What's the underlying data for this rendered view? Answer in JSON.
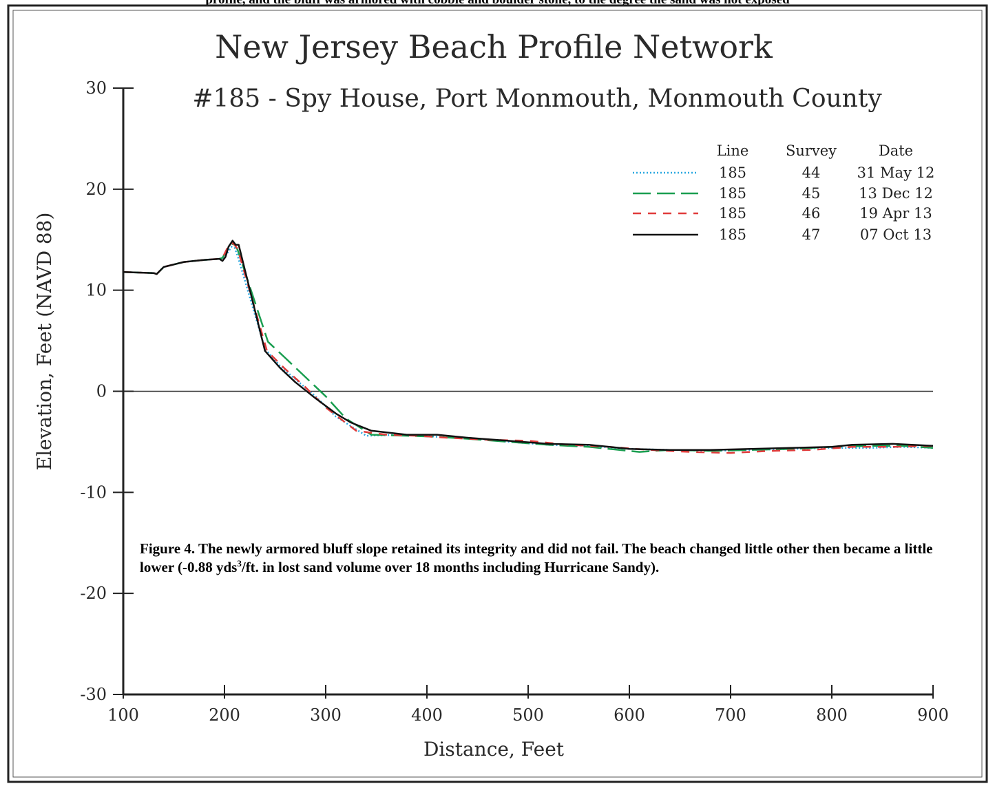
{
  "top_fragment": "profile, and the bluff was armored with cobble and boulder stone, to the degree the sand was not exposed",
  "chart_data": {
    "type": "line",
    "title": "New Jersey Beach Profile Network",
    "subtitle": "#185 - Spy House, Port Monmouth, Monmouth County",
    "xlabel": "Distance, Feet",
    "ylabel": "Elevation, Feet (NAVD 88)",
    "xlim": [
      100,
      900
    ],
    "ylim": [
      -30,
      30
    ],
    "xticks": [
      100,
      200,
      300,
      400,
      500,
      600,
      700,
      800,
      900
    ],
    "yticks": [
      30,
      20,
      10,
      0,
      -10,
      -20,
      -30
    ],
    "grid": false,
    "zero_line": true,
    "legend": {
      "position": "top-right",
      "headers": [
        "Line",
        "Survey",
        "Date"
      ],
      "entries": [
        {
          "line": "185",
          "survey": "44",
          "date": "31 May 12",
          "color": "#29a8e0",
          "style": "dotted"
        },
        {
          "line": "185",
          "survey": "45",
          "date": "13 Dec 12",
          "color": "#1a9e50",
          "style": "longdash"
        },
        {
          "line": "185",
          "survey": "46",
          "date": "19 Apr 13",
          "color": "#e03b3b",
          "style": "dashed"
        },
        {
          "line": "185",
          "survey": "47",
          "date": "07 Oct 13",
          "color": "#111111",
          "style": "solid"
        }
      ]
    },
    "series": [
      {
        "x": [
          100,
          130,
          133,
          140,
          160,
          180,
          195,
          198,
          203,
          207,
          210,
          213,
          240,
          255,
          270,
          290,
          310,
          340,
          380,
          410,
          440,
          480,
          520,
          560,
          600,
          640,
          680,
          720,
          760,
          800,
          840,
          870,
          900
        ],
        "y": [
          11.8,
          11.7,
          11.6,
          12.3,
          12.8,
          13.0,
          13.1,
          13.2,
          13.7,
          14.3,
          14.2,
          13.4,
          4.2,
          2.5,
          1.2,
          -0.5,
          -2.5,
          -4.4,
          -4.3,
          -4.5,
          -4.6,
          -5.0,
          -5.3,
          -5.4,
          -5.7,
          -5.8,
          -5.9,
          -5.8,
          -5.7,
          -5.6,
          -5.6,
          -5.5,
          -5.6
        ]
      },
      {
        "x": [
          100,
          130,
          133,
          140,
          160,
          180,
          195,
          198,
          203,
          207,
          210,
          213,
          243,
          260,
          280,
          300,
          320,
          345,
          380,
          410,
          440,
          480,
          520,
          560,
          610,
          640,
          680,
          720,
          760,
          800,
          840,
          870,
          900
        ],
        "y": [
          11.8,
          11.7,
          11.6,
          12.3,
          12.8,
          13.0,
          13.1,
          13.2,
          14.1,
          14.6,
          14.5,
          14.0,
          4.9,
          3.3,
          1.4,
          -0.5,
          -2.7,
          -4.3,
          -4.4,
          -4.5,
          -4.7,
          -5.0,
          -5.3,
          -5.5,
          -6.0,
          -5.8,
          -5.9,
          -5.8,
          -5.7,
          -5.5,
          -5.4,
          -5.4,
          -5.6
        ]
      },
      {
        "x": [
          100,
          130,
          133,
          140,
          160,
          180,
          195,
          198,
          203,
          207,
          210,
          213,
          242,
          260,
          280,
          300,
          330,
          360,
          390,
          420,
          460,
          500,
          540,
          580,
          620,
          660,
          700,
          740,
          780,
          820,
          860,
          900
        ],
        "y": [
          11.8,
          11.7,
          11.6,
          12.3,
          12.8,
          13.0,
          13.1,
          13.2,
          14.2,
          14.7,
          14.5,
          14.1,
          4.0,
          2.2,
          0.4,
          -1.6,
          -3.9,
          -4.3,
          -4.4,
          -4.6,
          -4.8,
          -4.9,
          -5.3,
          -5.5,
          -5.8,
          -6.0,
          -6.1,
          -5.9,
          -5.8,
          -5.5,
          -5.5,
          -5.4
        ]
      },
      {
        "x": [
          100,
          130,
          133,
          140,
          160,
          180,
          195,
          198,
          201,
          204,
          208,
          211,
          214,
          240,
          255,
          270,
          290,
          310,
          325,
          345,
          380,
          410,
          440,
          480,
          520,
          560,
          600,
          640,
          680,
          720,
          760,
          800,
          820,
          860,
          900
        ],
        "y": [
          11.8,
          11.7,
          11.6,
          12.3,
          12.8,
          13.0,
          13.1,
          12.9,
          13.3,
          14.3,
          14.9,
          14.5,
          14.5,
          4.0,
          2.3,
          0.9,
          -0.7,
          -2.2,
          -3.1,
          -3.9,
          -4.3,
          -4.3,
          -4.6,
          -4.9,
          -5.2,
          -5.3,
          -5.7,
          -5.8,
          -5.8,
          -5.7,
          -5.6,
          -5.5,
          -5.3,
          -5.2,
          -5.4
        ]
      }
    ],
    "caption": {
      "text1": "Figure 4.  The newly armored bluff slope retained its integrity and did not fail.  The beach changed little other then became a little lower (-0.88 yds",
      "sup": "3",
      "text2": "/ft. in lost sand volume over 18 months including Hurricane Sandy)."
    }
  }
}
